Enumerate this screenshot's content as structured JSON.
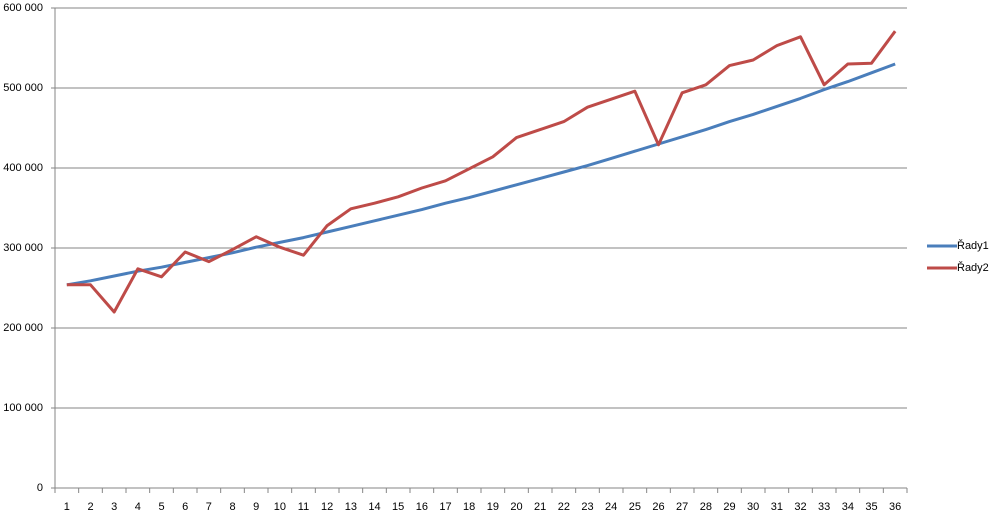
{
  "chart_data": {
    "type": "line",
    "categories": [
      "1",
      "2",
      "3",
      "4",
      "5",
      "6",
      "7",
      "8",
      "9",
      "10",
      "11",
      "12",
      "13",
      "14",
      "15",
      "16",
      "17",
      "18",
      "19",
      "20",
      "21",
      "22",
      "23",
      "24",
      "25",
      "26",
      "27",
      "28",
      "29",
      "30",
      "31",
      "32",
      "33",
      "34",
      "35",
      "36"
    ],
    "series": [
      {
        "name": "Řady1",
        "color": "#4a7ebb",
        "values": [
          254000,
          259000,
          265000,
          271000,
          276000,
          282000,
          288000,
          294000,
          301000,
          307000,
          313000,
          320000,
          327000,
          334000,
          341000,
          348000,
          356000,
          363000,
          371000,
          379000,
          387000,
          395000,
          403000,
          412000,
          421000,
          430000,
          439000,
          448000,
          458000,
          467000,
          477000,
          487000,
          498000,
          508000,
          519000,
          530000
        ]
      },
      {
        "name": "Řady2",
        "color": "#be4b48",
        "values": [
          254000,
          254000,
          220000,
          274000,
          264000,
          295000,
          283000,
          298000,
          314000,
          301000,
          291000,
          328000,
          349000,
          356000,
          364000,
          375000,
          384000,
          399000,
          414000,
          438000,
          448000,
          458000,
          476000,
          486000,
          496000,
          429000,
          494000,
          504000,
          528000,
          535000,
          553000,
          564000,
          504000,
          530000,
          531000,
          571000
        ]
      }
    ],
    "ylim": [
      0,
      600000
    ],
    "yticks": [
      0,
      {
        "value": 100000,
        "label": "100 000"
      },
      {
        "value": 200000,
        "label": "200 000"
      },
      {
        "value": 300000,
        "label": "300 000"
      },
      {
        "value": 400000,
        "label": "400 000"
      },
      {
        "value": 500000,
        "label": "500 000"
      },
      {
        "value": 600000,
        "label": "600 000"
      }
    ],
    "grid": true,
    "legend": "right"
  }
}
